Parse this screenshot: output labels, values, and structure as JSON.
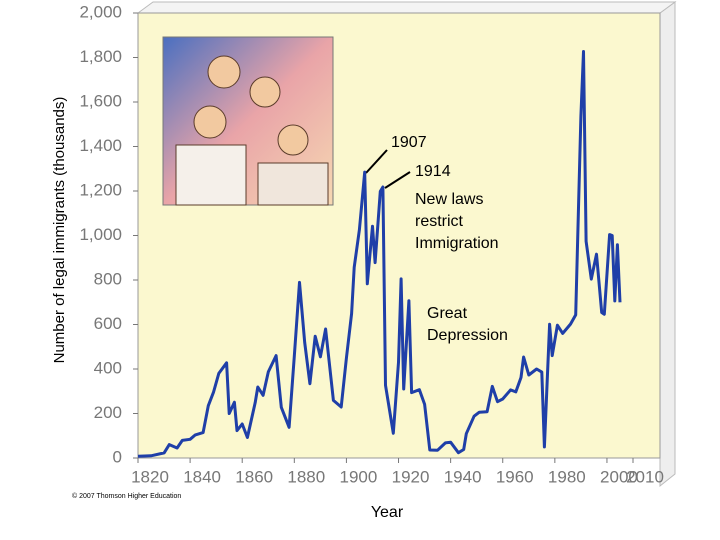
{
  "chart_data": {
    "type": "line",
    "y_label": "Number of legal immigrants (thousands)",
    "x_label": "Year",
    "credit": "© 2007 Thomson Higher Education",
    "annotations": [
      "1907",
      "1914",
      "New laws restrict Immigration",
      "Great Depression"
    ],
    "color": "#1f3fa8",
    "x": [
      1820,
      1825,
      1830,
      1832,
      1835,
      1837,
      1840,
      1842,
      1845,
      1847,
      1849,
      1851,
      1854,
      1855,
      1857,
      1858,
      1860,
      1862,
      1865,
      1866,
      1868,
      1870,
      1873,
      1875,
      1878,
      1880,
      1882,
      1884,
      1886,
      1888,
      1890,
      1892,
      1895,
      1898,
      1900,
      1902,
      1903,
      1905,
      1907,
      1908,
      1910,
      1911,
      1913,
      1914,
      1915,
      1918,
      1920,
      1921,
      1922,
      1924,
      1925,
      1928,
      1930,
      1932,
      1935,
      1938,
      1940,
      1943,
      1945,
      1946,
      1949,
      1951,
      1954,
      1956,
      1958,
      1960,
      1963,
      1965,
      1967,
      1968,
      1970,
      1973,
      1975,
      1976,
      1978,
      1979,
      1981,
      1983,
      1986,
      1988,
      1989,
      1990,
      1991,
      1992,
      1994,
      1996,
      1998,
      1999,
      2001,
      2002,
      2003,
      2004,
      2005
    ],
    "values": [
      8,
      10,
      23,
      60,
      45,
      79,
      84,
      104,
      114,
      235,
      297,
      380,
      428,
      200,
      251,
      123,
      153,
      92,
      249,
      319,
      282,
      387,
      460,
      228,
      138,
      457,
      789,
      519,
      334,
      547,
      455,
      580,
      259,
      229,
      449,
      649,
      857,
      1026,
      1285,
      783,
      1042,
      878,
      1198,
      1218,
      327,
      111,
      430,
      805,
      310,
      707,
      294,
      307,
      242,
      36,
      35,
      68,
      71,
      24,
      38,
      109,
      188,
      206,
      208,
      322,
      253,
      265,
      306,
      297,
      362,
      454,
      373,
      400,
      386,
      50,
      601,
      460,
      597,
      560,
      602,
      643,
      1091,
      1536,
      1827,
      974,
      804,
      916,
      654,
      646,
      1004,
      1000,
      706,
      958,
      700
    ],
    "xlim": [
      1820,
      2010
    ],
    "xticks": [
      1820,
      1840,
      1860,
      1880,
      1900,
      1920,
      1940,
      1960,
      1980,
      2000,
      2010
    ],
    "ylim": [
      0,
      2000
    ],
    "yticks": [
      0,
      200,
      400,
      600,
      800,
      {
        "value": 1000,
        "label": "1,000"
      },
      {
        "value": 1200,
        "label": "1,200"
      },
      {
        "value": 1400,
        "label": "1,400"
      },
      {
        "value": 1600,
        "label": "1,600"
      },
      {
        "value": 1800,
        "label": "1,800"
      },
      {
        "value": 2000,
        "label": "2,000"
      }
    ]
  }
}
